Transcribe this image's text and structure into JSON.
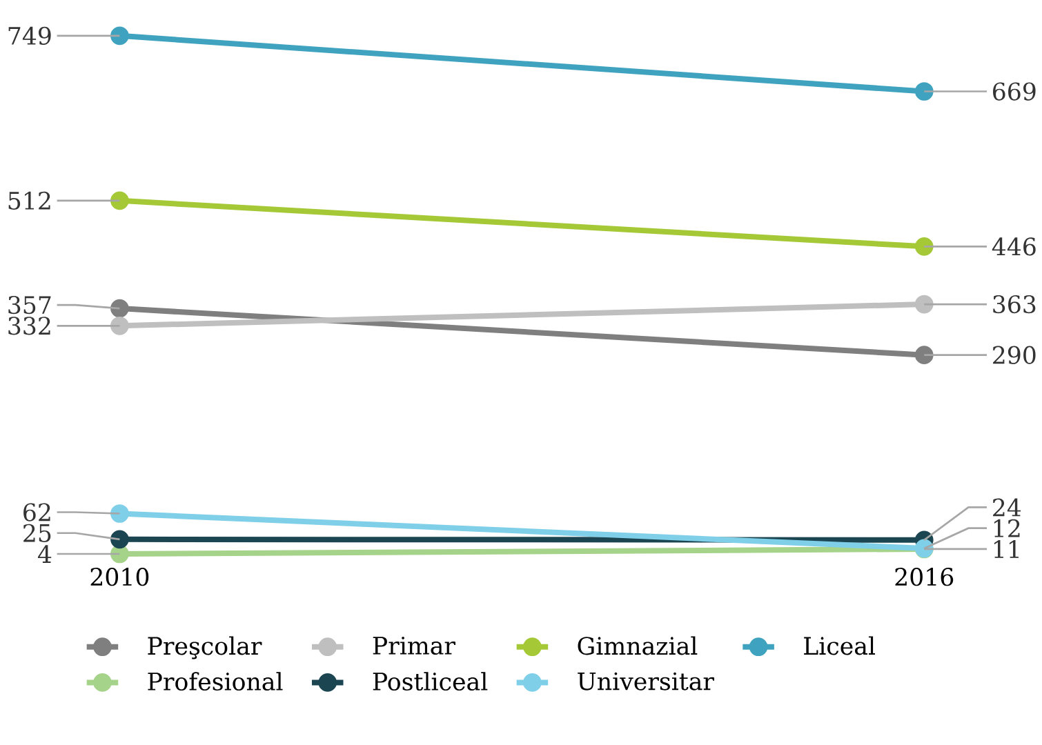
{
  "chart_data": {
    "type": "line",
    "categories": [
      "2010",
      "2016"
    ],
    "tick_labels": "x",
    "data_labels": true,
    "marker": "circle",
    "line_style": "solid",
    "legend": "bottom",
    "series": [
      {
        "name": "Preşcolar",
        "color": "#7f7f7f",
        "values": [
          357,
          290
        ]
      },
      {
        "name": "Primar",
        "color": "#bfbfbf",
        "values": [
          332,
          363
        ]
      },
      {
        "name": "Gimnazial",
        "color": "#a5c936",
        "values": [
          512,
          446
        ]
      },
      {
        "name": "Liceal",
        "color": "#3fa3c0",
        "values": [
          749,
          669
        ]
      },
      {
        "name": "Profesional",
        "color": "#a6d38a",
        "values": [
          4,
          11
        ]
      },
      {
        "name": "Postliceal",
        "color": "#1b4651",
        "values": [
          25,
          24
        ]
      },
      {
        "name": "Universitar",
        "color": "#7fcfe8",
        "values": [
          62,
          12
        ]
      }
    ]
  }
}
